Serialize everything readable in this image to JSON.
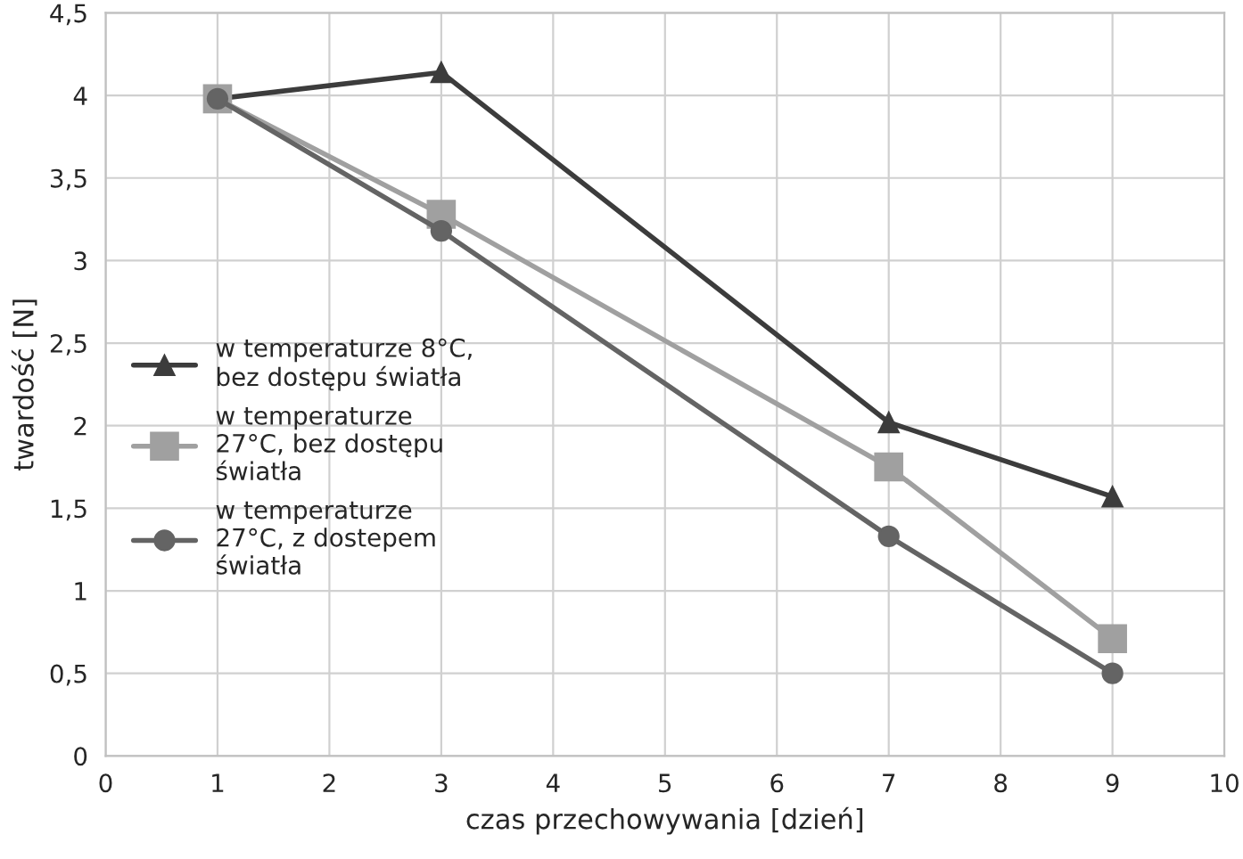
{
  "chart_data": {
    "type": "line",
    "xlabel": "czas przechowywania [dzień]",
    "ylabel": "twardość [N]",
    "x": [
      1,
      3,
      7,
      9
    ],
    "series": [
      {
        "name": "w temperaturze 8°C,\nbez dostępu światła",
        "color": "#3c3c3c",
        "marker": "triangle",
        "values": [
          3.98,
          4.14,
          2.02,
          1.57
        ]
      },
      {
        "name": "w temperaturze\n27°C, bez dostępu\nświatła",
        "color": "#a0a0a0",
        "marker": "square",
        "values": [
          3.98,
          3.28,
          1.75,
          0.71
        ]
      },
      {
        "name": "w temperaturze\n27°C, z dostepem\nświatła",
        "color": "#646464",
        "marker": "circle",
        "values": [
          3.98,
          3.18,
          1.33,
          0.5
        ]
      }
    ],
    "xlim": [
      0,
      10
    ],
    "xticks": [
      0,
      1,
      2,
      3,
      4,
      5,
      6,
      7,
      8,
      9,
      10
    ],
    "ylim": [
      0,
      4.5
    ],
    "yticks": [
      0,
      {
        "value": 0.5,
        "label": "0,5"
      },
      1,
      {
        "value": 1.5,
        "label": "1,5"
      },
      2,
      {
        "value": 2.5,
        "label": "2,5"
      },
      3,
      {
        "value": 3.5,
        "label": "3,5"
      },
      4,
      {
        "value": 4.5,
        "label": "4,5"
      }
    ],
    "grid": true,
    "legend": "left",
    "line_style": "solid"
  }
}
